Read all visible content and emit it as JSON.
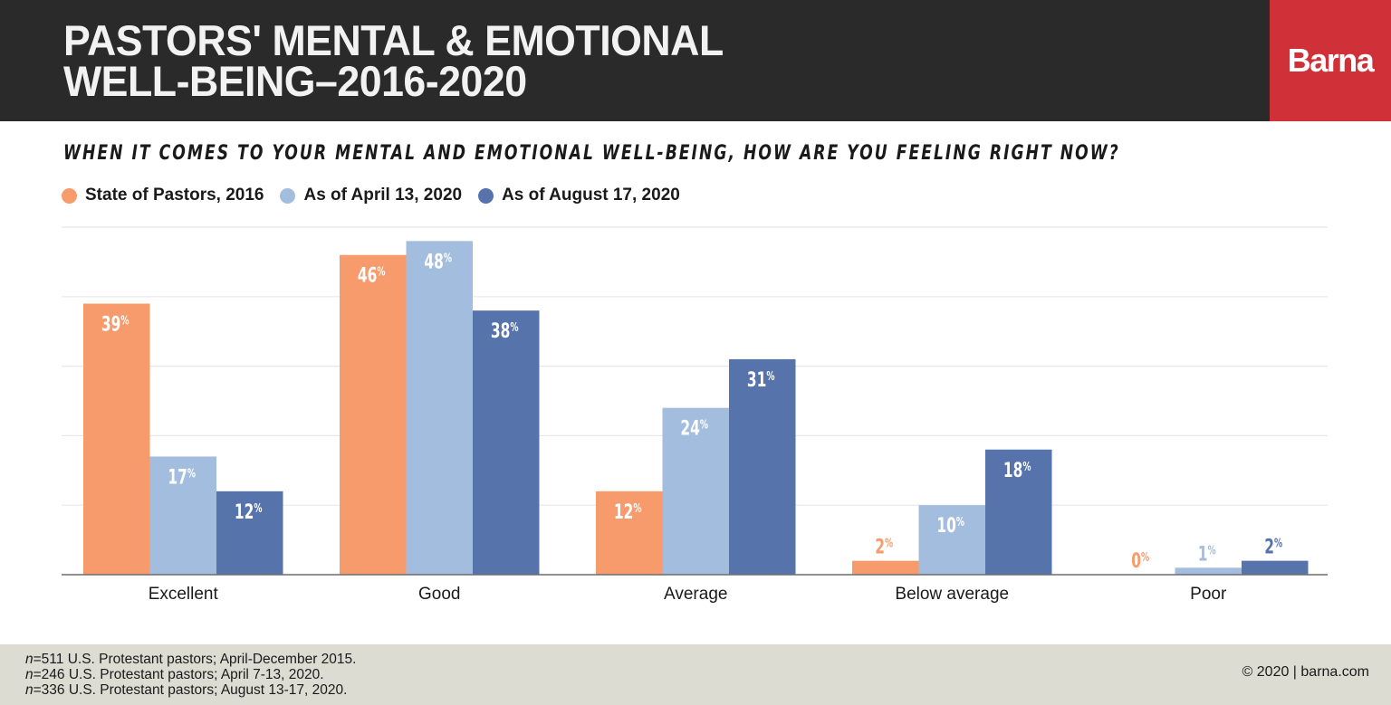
{
  "header": {
    "title_line1": "PASTORS' MENTAL & EMOTIONAL",
    "title_line2": "WELL-BEING–2016-2020",
    "logo_text": "Barna"
  },
  "colors": {
    "header_bg": "#2a2a2a",
    "logo_bg": "#d03037",
    "series_2016": "#f79b6c",
    "series_april": "#a3bddf",
    "series_august": "#5673ac",
    "footer_bg": "#dddcd3"
  },
  "footer": {
    "notes": [
      {
        "n": "n",
        "text": "=511 U.S. Protestant pastors; April-December 2015."
      },
      {
        "n": "n",
        "text": "=246 U.S. Protestant pastors; April 7-13, 2020."
      },
      {
        "n": "n",
        "text": "=336 U.S. Protestant pastors; August 13-17, 2020."
      }
    ],
    "copyright": "© 2020 | barna.com"
  },
  "chart_data": {
    "type": "bar",
    "title": "PASTORS' MENTAL & EMOTIONAL WELL-BEING–2016-2020",
    "subtitle": "WHEN IT COMES TO YOUR MENTAL AND EMOTIONAL WELL-BEING, HOW ARE YOU FEELING RIGHT NOW?",
    "xlabel": "",
    "ylabel": "",
    "ylim": [
      0,
      50
    ],
    "grid": true,
    "gridlines": [
      10,
      20,
      30,
      40,
      50
    ],
    "legend_position": "top-left",
    "value_suffix": "%",
    "categories": [
      "Excellent",
      "Good",
      "Average",
      "Below average",
      "Poor"
    ],
    "series": [
      {
        "name": "State of Pastors, 2016",
        "color": "#f79b6c",
        "values": [
          39,
          46,
          12,
          2,
          0
        ]
      },
      {
        "name": "As of April 13, 2020",
        "color": "#a3bddf",
        "values": [
          17,
          48,
          24,
          10,
          1
        ]
      },
      {
        "name": "As of August 17, 2020",
        "color": "#5673ac",
        "values": [
          12,
          38,
          31,
          18,
          2
        ]
      }
    ]
  }
}
